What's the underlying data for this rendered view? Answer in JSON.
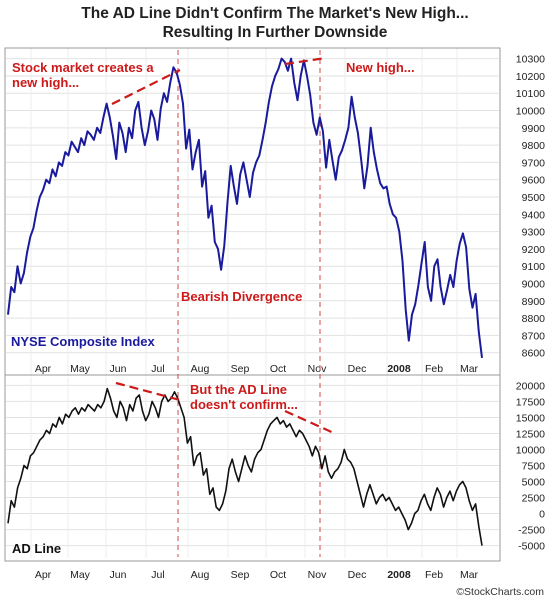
{
  "title_line1": "The AD Line Didn't Confirm The Market's New High...",
  "title_line2": "Resulting In Further Downside",
  "credit": "©StockCharts.com",
  "colors": {
    "nyse_line": "#1a1a9c",
    "ad_line": "#111111",
    "annotation": "#cc1a1a"
  },
  "chart_data": [
    {
      "type": "line",
      "label": "NYSE Composite Index",
      "months": [
        "Apr",
        "May",
        "Jun",
        "Jul",
        "Aug",
        "Sep",
        "Oct",
        "Nov",
        "Dec",
        "2008",
        "Feb",
        "Mar"
      ],
      "ylim": [
        8500,
        10350
      ],
      "yticks": [
        8600,
        8700,
        8800,
        8900,
        9000,
        9100,
        9200,
        9300,
        9400,
        9500,
        9600,
        9700,
        9800,
        9900,
        10000,
        10100,
        10200,
        10300
      ],
      "y": [
        8820,
        8980,
        8950,
        9100,
        9000,
        9060,
        9180,
        9270,
        9320,
        9420,
        9500,
        9540,
        9600,
        9580,
        9660,
        9620,
        9700,
        9680,
        9760,
        9740,
        9820,
        9790,
        9760,
        9840,
        9800,
        9880,
        9860,
        9830,
        9900,
        9870,
        9960,
        10040,
        9960,
        9850,
        9720,
        9930,
        9870,
        9760,
        9900,
        9840,
        10000,
        10050,
        9900,
        9800,
        9880,
        10000,
        9950,
        9830,
        10010,
        10100,
        10050,
        10160,
        10250,
        10220,
        10150,
        10040,
        9780,
        9890,
        9660,
        9760,
        9830,
        9560,
        9650,
        9380,
        9450,
        9240,
        9200,
        9080,
        9220,
        9470,
        9680,
        9560,
        9460,
        9630,
        9700,
        9600,
        9500,
        9640,
        9700,
        9740,
        9830,
        9930,
        10050,
        10140,
        10200,
        10240,
        10300,
        10280,
        10230,
        10300,
        10160,
        10060,
        10200,
        10290,
        10200,
        10090,
        9930,
        9860,
        9960,
        9880,
        9670,
        9830,
        9710,
        9600,
        9730,
        9770,
        9830,
        9900,
        10080,
        9960,
        9870,
        9720,
        9550,
        9680,
        9900,
        9760,
        9660,
        9580,
        9550,
        9560,
        9460,
        9400,
        9380,
        9300,
        9130,
        8850,
        8670,
        8820,
        8880,
        8990,
        9120,
        9240,
        8980,
        8900,
        9100,
        9140,
        8980,
        8880,
        8960,
        9050,
        8980,
        9130,
        9230,
        9290,
        9210,
        8970,
        8860,
        8940,
        8720,
        8570
      ]
    },
    {
      "type": "line",
      "label": "AD Line",
      "months": [
        "Apr",
        "May",
        "Jun",
        "Jul",
        "Aug",
        "Sep",
        "Oct",
        "Nov",
        "Dec",
        "2008",
        "Feb",
        "Mar"
      ],
      "ylim": [
        -6000,
        21000
      ],
      "yticks": [
        -5000,
        -2500,
        0,
        2500,
        5000,
        7500,
        10000,
        12500,
        15000,
        17500,
        20000
      ],
      "y": [
        -1500,
        2000,
        1000,
        4000,
        5500,
        7500,
        7000,
        9000,
        9500,
        10500,
        11500,
        12000,
        13000,
        12500,
        14000,
        13500,
        15000,
        14000,
        15500,
        15000,
        16000,
        16500,
        15500,
        16500,
        16000,
        17000,
        16500,
        16000,
        17000,
        16500,
        17500,
        19500,
        18000,
        16000,
        15000,
        17500,
        16500,
        14500,
        17000,
        16000,
        18000,
        18500,
        16000,
        14500,
        15500,
        17500,
        16500,
        15000,
        17500,
        18500,
        17500,
        18000,
        19000,
        18000,
        16500,
        15000,
        11000,
        12000,
        7500,
        9000,
        9500,
        6000,
        7000,
        3000,
        4000,
        1000,
        500,
        1500,
        3500,
        7000,
        8500,
        6500,
        5000,
        7000,
        9000,
        7500,
        6500,
        8500,
        9500,
        10000,
        11500,
        13000,
        14000,
        14500,
        15000,
        14000,
        14500,
        13500,
        14000,
        13000,
        12000,
        13000,
        12500,
        11500,
        10500,
        9000,
        10500,
        9500,
        7000,
        9000,
        6500,
        5500,
        6500,
        7000,
        8000,
        10000,
        8500,
        8000,
        7000,
        5000,
        3000,
        1000,
        3000,
        4500,
        3000,
        1500,
        2500,
        3000,
        2000,
        2500,
        1500,
        500,
        1000,
        0,
        -1000,
        -2500,
        -1500,
        0,
        500,
        2000,
        3000,
        1500,
        500,
        2500,
        4000,
        3000,
        1000,
        2500,
        3500,
        2000,
        3500,
        4500,
        5000,
        4000,
        2000,
        500,
        1500,
        -2000,
        -5000
      ]
    }
  ],
  "annotations": {
    "stock_market_l1": "Stock market creates a",
    "stock_market_l2": "new high...",
    "new_high": "New high...",
    "bearish": "Bearish Divergence",
    "but_ad_l1": "But the AD Line",
    "but_ad_l2": "doesn't confirm..."
  }
}
